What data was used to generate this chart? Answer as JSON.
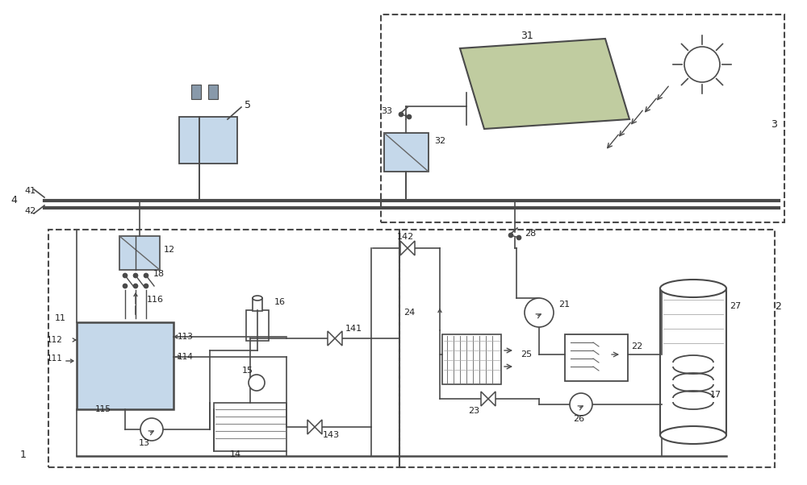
{
  "bg_color": "#ffffff",
  "line_color": "#4a4a4a",
  "box_fill_blue": "#c5d8ea",
  "box_fill_gray": "#b8c8d8",
  "dashed_color": "#555555",
  "label_color": "#222222",
  "fig_width": 10.0,
  "fig_height": 6.02
}
